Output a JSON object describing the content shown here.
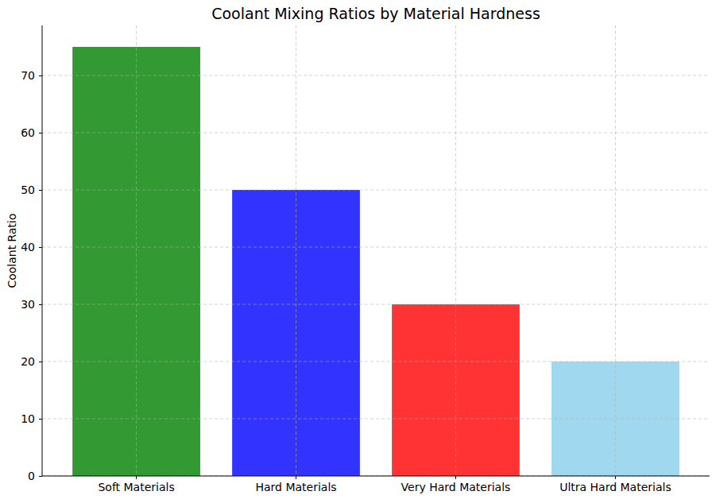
{
  "chart_data": {
    "type": "bar",
    "title": "Coolant Mixing Ratios by Material Hardness",
    "y_label": "Coolant Ratio",
    "categories": [
      "Soft Materials",
      "Hard Materials",
      "Very Hard Materials",
      "Ultra Hard Materials"
    ],
    "values": [
      75,
      50,
      30,
      20
    ],
    "colors": [
      "#339933",
      "#3333ff",
      "#ff3333",
      "#9fd8ef"
    ],
    "ylim": [
      0,
      78.75
    ],
    "yticks": [
      0,
      10,
      20,
      30,
      40,
      50,
      60,
      70
    ],
    "grid": true
  }
}
